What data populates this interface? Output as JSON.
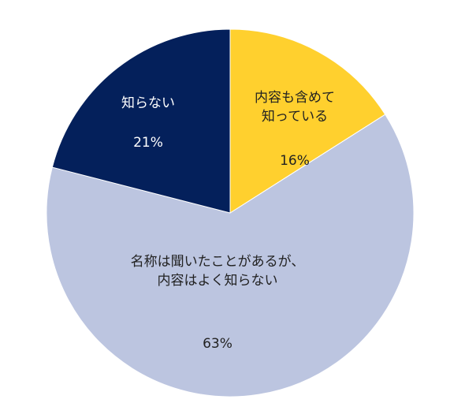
{
  "chart_data": {
    "type": "pie",
    "start_angle_deg": 0,
    "direction": "clockwise",
    "slices": [
      {
        "label": [
          "内容も含めて",
          "知っている"
        ],
        "value": 16,
        "value_text": "16%",
        "color": "#FFD02E",
        "text_tone": "dark"
      },
      {
        "label": [
          "名称は聞いたことがあるが、",
          "内容はよく知らない"
        ],
        "value": 63,
        "value_text": "63%",
        "color": "#BCC5E0",
        "text_tone": "dark"
      },
      {
        "label": [
          "知らない"
        ],
        "value": 21,
        "value_text": "21%",
        "color": "#04205B",
        "text_tone": "light"
      }
    ]
  }
}
